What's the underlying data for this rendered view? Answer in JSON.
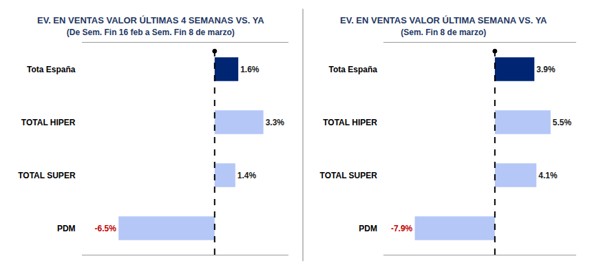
{
  "chart_data": [
    {
      "type": "bar",
      "title": "EV. EN VENTAS VALOR ÚLTIMAS 4 SEMANAS VS. YA",
      "subtitle": "(De Sem. Fin 16 feb a Sem. Fin 8 de marzo)",
      "orientation": "horizontal",
      "categories": [
        "Tota España",
        "TOTAL HIPER",
        "TOTAL SUPER",
        "PDM"
      ],
      "values": [
        1.6,
        3.3,
        1.4,
        -6.5
      ],
      "value_labels": [
        "1.6%",
        "3.3%",
        "1.4%",
        "-6.5%"
      ],
      "colors": [
        "#002673",
        "#b4c7f7",
        "#b4c7f7",
        "#b4c7f7"
      ],
      "data_labels": true,
      "tick_labels": "y",
      "grid": false,
      "xlim": [
        -9,
        5
      ]
    },
    {
      "type": "bar",
      "title": "EV. EN VENTAS VALOR ÚLTIMA SEMANA VS. YA",
      "subtitle": "(Sem. Fin 8 de marzo)",
      "orientation": "horizontal",
      "categories": [
        "Tota España",
        "TOTAL HIPER",
        "TOTAL SUPER",
        "PDM"
      ],
      "values": [
        3.9,
        5.5,
        4.1,
        -7.9
      ],
      "value_labels": [
        "3.9%",
        "5.5%",
        "4.1%",
        "-7.9%"
      ],
      "colors": [
        "#002673",
        "#b4c7f7",
        "#b4c7f7",
        "#b4c7f7"
      ],
      "data_labels": true,
      "tick_labels": "y",
      "grid": false,
      "xlim": [
        -11,
        8
      ]
    }
  ]
}
